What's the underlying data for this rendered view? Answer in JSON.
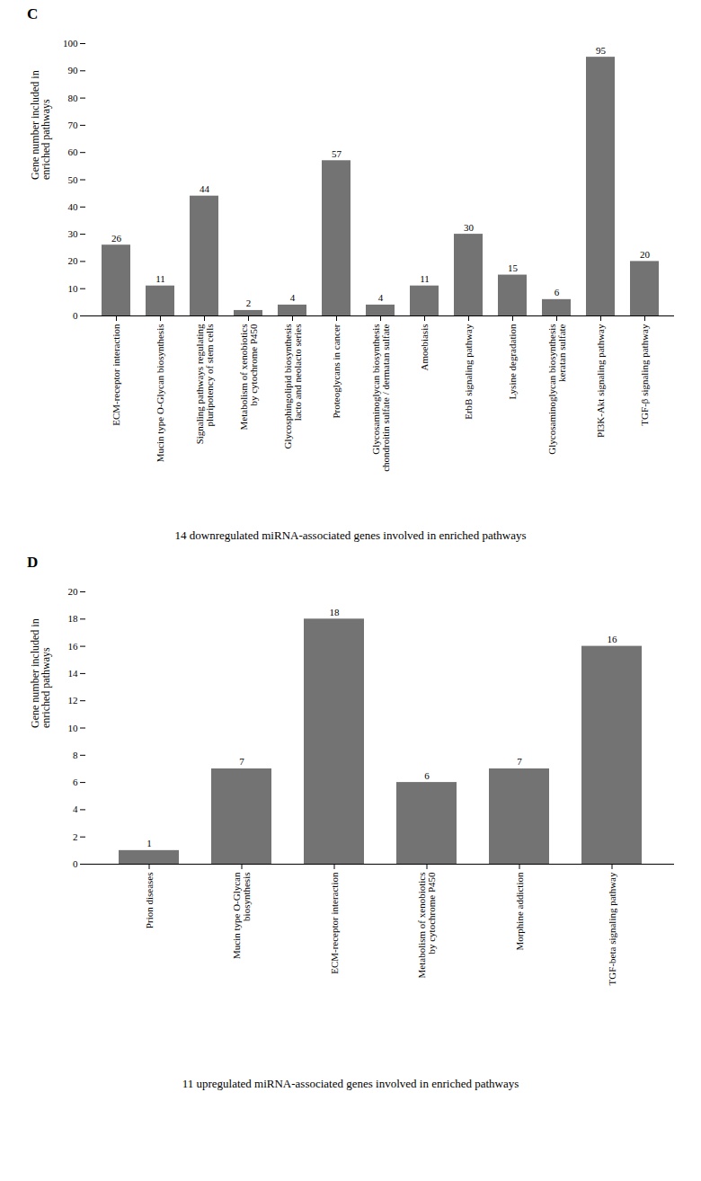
{
  "chart_data": [
    {
      "type": "bar",
      "title": "C",
      "categories": [
        "ECM-receptor interaction",
        "Mucin type O-Glycan biosynthesis",
        "Signaling pathways regulating\npluripotency of stem cells",
        "Metabolism of xenobiotics\nby cytochrome P450",
        "Glycosphingolipid biosynthesis\nlacto and neolacto series",
        "Proteoglycans in cancer",
        "Glycosaminoglycan biosynthesis\nchondroitin sulfate / dermatan sulfate",
        "Amoebiasis",
        "ErbB signaling pathway",
        "Lysine degradation",
        "Glycosaminoglycan biosynthesis\nkeratan sulfate",
        "PI3K-Akt signaling pathway",
        "TGF-β signaling pathway"
      ],
      "values": [
        26,
        11,
        44,
        2,
        4,
        57,
        4,
        11,
        30,
        15,
        6,
        95,
        20
      ],
      "ylabel": "Gene number included in\nenriched pathways",
      "ylim": [
        0,
        100
      ],
      "yticks": [
        0,
        10,
        20,
        30,
        40,
        50,
        60,
        70,
        80,
        90,
        100
      ],
      "caption": "14 downregulated miRNA-associated genes involved in enriched pathways",
      "color": "#737373",
      "data_labels": true
    },
    {
      "type": "bar",
      "title": "D",
      "categories": [
        "Prion diseases",
        "Mucin type O-Glycan\nbiosynthesis",
        "ECM-receptor interaction",
        "Metabolism of xenobiotics\nby cytochrome P450",
        "Morphine addiction",
        "TGF-beta signaling pathway"
      ],
      "values": [
        1,
        7,
        18,
        6,
        7,
        16
      ],
      "ylabel": "Gene number included in\nenriched pathways",
      "ylim": [
        0,
        20
      ],
      "yticks": [
        0,
        2,
        4,
        6,
        8,
        10,
        12,
        14,
        16,
        18,
        20
      ],
      "caption": "11 upregulated miRNA-associated genes involved in enriched pathways",
      "color": "#737373",
      "data_labels": true
    }
  ]
}
